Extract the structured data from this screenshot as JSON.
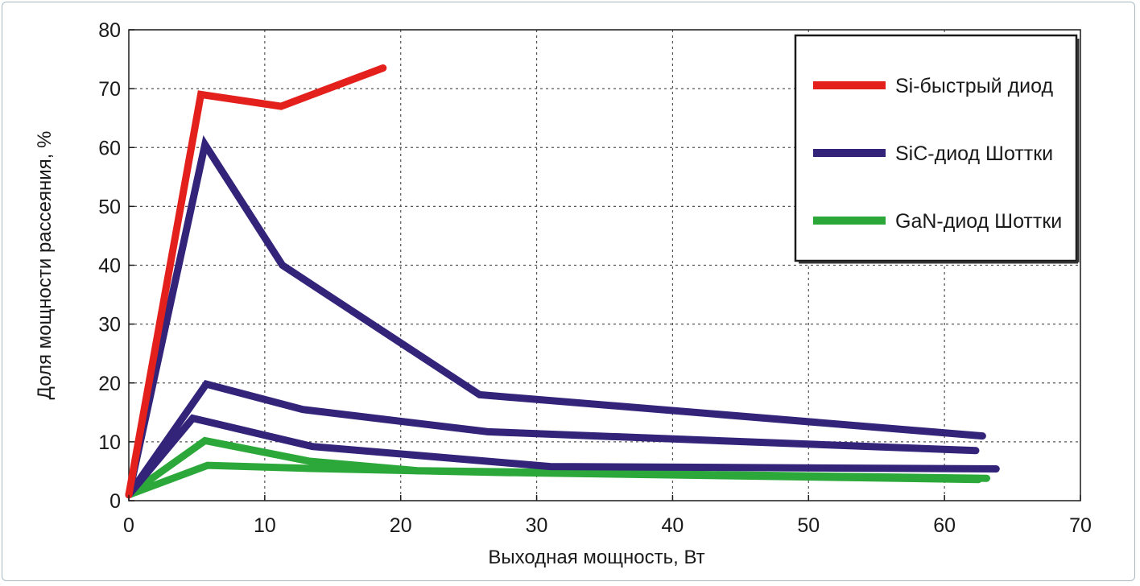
{
  "chart_data": {
    "type": "line",
    "title": "",
    "xlabel": "Выходная мощность, Вт",
    "ylabel": "Доля мощности рассеяния, %",
    "xlim": [
      0,
      70
    ],
    "ylim": [
      0,
      80
    ],
    "xticks": [
      "0",
      "10",
      "20",
      "30",
      "40",
      "50",
      "60",
      "70"
    ],
    "yticks": [
      "0",
      "10",
      "20",
      "30",
      "40",
      "50",
      "60",
      "70",
      "80"
    ],
    "grid": true,
    "legend_position": "top-right",
    "legend": [
      {
        "label": "Si-быстрый диод",
        "color": "#e3201b"
      },
      {
        "label": "SiC-диод Шоттки",
        "color": "#33247a"
      },
      {
        "label": "GaN-диод Шоттки",
        "color": "#2ca83a"
      }
    ],
    "series": [
      {
        "name": "Si-быстрый диод",
        "color": "#e3201b",
        "x": [
          0,
          5.3,
          11.2,
          18.7
        ],
        "y": [
          1,
          69,
          67,
          73.5
        ]
      },
      {
        "name": "SiC-диод Шоттки",
        "color": "#33247a",
        "x": [
          0,
          5.6,
          11.3,
          25.8,
          62.8
        ],
        "y": [
          1,
          60.5,
          40,
          18,
          11
        ]
      },
      {
        "color": "#33247a",
        "x": [
          0,
          5.7,
          12.8,
          26.4,
          62.3
        ],
        "y": [
          1,
          19.8,
          15.5,
          11.7,
          8.5
        ]
      },
      {
        "color": "#33247a",
        "x": [
          0,
          4.7,
          13.5,
          31,
          63.8
        ],
        "y": [
          1,
          14,
          9.2,
          5.8,
          5.4
        ]
      },
      {
        "name": "GaN-диод Шоттки",
        "color": "#2ca83a",
        "x": [
          0,
          5.6,
          13.3,
          21.2,
          63.1
        ],
        "y": [
          1,
          10.2,
          6.7,
          5.1,
          3.8
        ]
      },
      {
        "color": "#2ca83a",
        "x": [
          0,
          5.8,
          13,
          27,
          62.5
        ],
        "y": [
          1,
          6,
          5.5,
          4.8,
          3.6
        ]
      }
    ]
  }
}
